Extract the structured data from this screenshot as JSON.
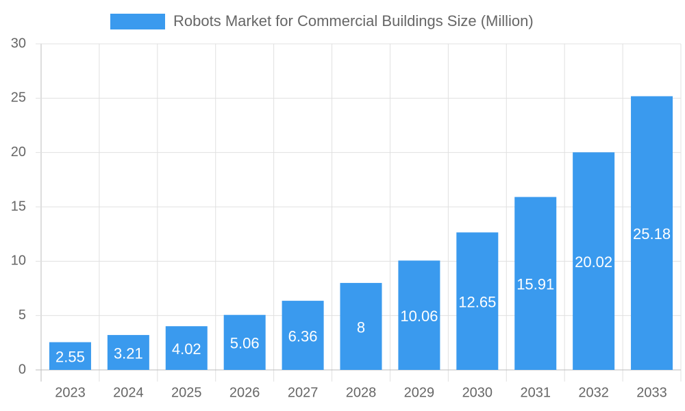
{
  "chart_data": {
    "type": "bar",
    "categories": [
      "2023",
      "2024",
      "2025",
      "2026",
      "2027",
      "2028",
      "2029",
      "2030",
      "2031",
      "2032",
      "2033"
    ],
    "series": [
      {
        "name": "Robots Market for Commercial Buildings Size (Million)",
        "color": "#3a9aee",
        "values": [
          2.55,
          3.21,
          4.02,
          5.06,
          6.36,
          8,
          10.06,
          12.65,
          15.91,
          20.02,
          25.18
        ]
      }
    ],
    "ylim": [
      0,
      30
    ],
    "yticks": [
      0,
      5,
      10,
      15,
      20,
      25,
      30
    ],
    "grid": true,
    "legend": "top"
  }
}
